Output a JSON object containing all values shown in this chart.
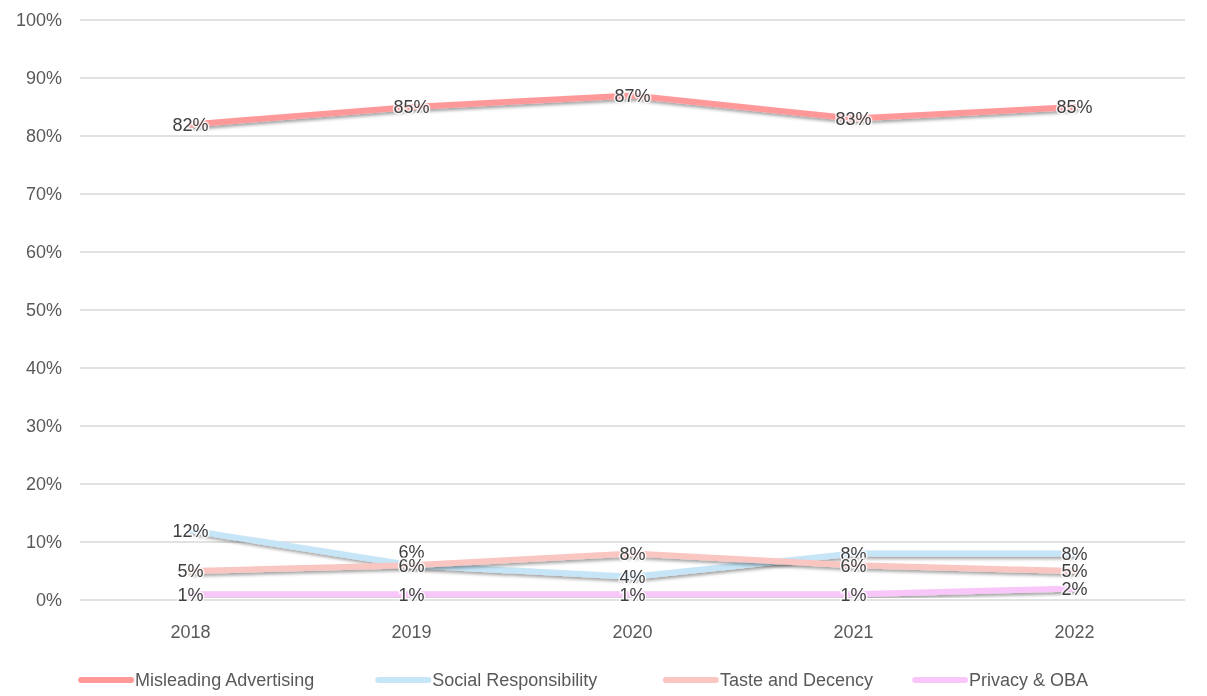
{
  "chart_data": {
    "type": "line",
    "categories": [
      "2018",
      "2019",
      "2020",
      "2021",
      "2022"
    ],
    "series": [
      {
        "name": "Misleading Advertising",
        "color": "#ff9999",
        "values": [
          82,
          85,
          87,
          83,
          85
        ],
        "value_labels": [
          "82%",
          "85%",
          "87%",
          "83%",
          "85%"
        ]
      },
      {
        "name": "Social Responsibility",
        "color": "#c6e6f8",
        "values": [
          12,
          6,
          4,
          8,
          8
        ],
        "value_labels": [
          "12%",
          "6%",
          "4%",
          "8%",
          "8%"
        ]
      },
      {
        "name": "Taste and Decency",
        "color": "#fac6c2",
        "values": [
          5,
          6,
          8,
          6,
          5
        ],
        "value_labels": [
          "5%",
          "6%",
          "8%",
          "6%",
          "5%"
        ]
      },
      {
        "name": "Privacy & OBA",
        "color": "#f8c6f8",
        "values": [
          1,
          1,
          1,
          1,
          2
        ],
        "value_labels": [
          "1%",
          "1%",
          "1%",
          "1%",
          "2%"
        ]
      }
    ],
    "ylim": [
      0,
      100
    ],
    "yticks": [
      {
        "value": 0,
        "label": "0%"
      },
      {
        "value": 10,
        "label": "10%"
      },
      {
        "value": 20,
        "label": "20%"
      },
      {
        "value": 30,
        "label": "30%"
      },
      {
        "value": 40,
        "label": "40%"
      },
      {
        "value": 50,
        "label": "50%"
      },
      {
        "value": 60,
        "label": "60%"
      },
      {
        "value": 70,
        "label": "70%"
      },
      {
        "value": 80,
        "label": "80%"
      },
      {
        "value": 90,
        "label": "90%"
      },
      {
        "value": 100,
        "label": "100%"
      }
    ],
    "grid": "y",
    "legend": "bottom",
    "marker": "none",
    "line_style": "solid"
  }
}
